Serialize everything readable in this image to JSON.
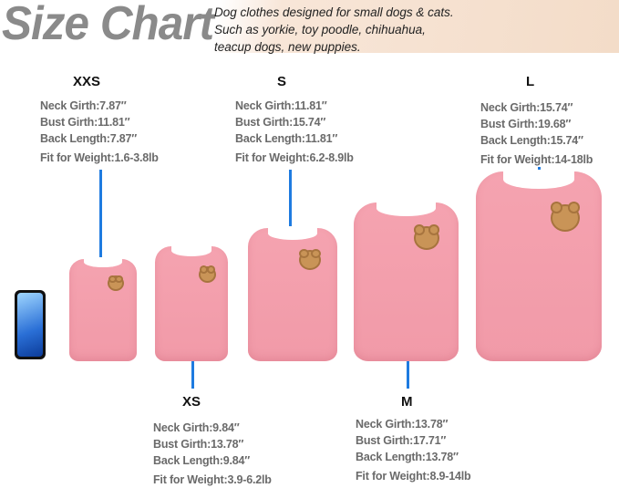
{
  "header": {
    "title": "Size Chart",
    "tagline": [
      "Dog clothes designed for small dogs & cats.",
      "Such as yorkie, toy poodle, chihuahua,",
      "teacup dogs, new puppies."
    ]
  },
  "colors": {
    "shirt": "#f5a3b0",
    "line": "#1e7be0",
    "text": "#6a6a6a"
  },
  "sizes": [
    {
      "size": "XXS",
      "neck": "Neck Girth:7.87″",
      "bust": "Bust Girth:11.81″",
      "back": "Back Length:7.87″",
      "weight": "Fit for Weight:1.6-3.8lb"
    },
    {
      "size": "XS",
      "neck": "Neck Girth:9.84″",
      "bust": "Bust Girth:13.78″",
      "back": "Back Length:9.84″",
      "weight": "Fit for Weight:3.9-6.2lb"
    },
    {
      "size": "S",
      "neck": "Neck Girth:11.81″",
      "bust": "Bust Girth:15.74″",
      "back": "Back Length:11.81″",
      "weight": "Fit for Weight:6.2-8.9lb"
    },
    {
      "size": "M",
      "neck": "Neck Girth:13.78″",
      "bust": "Bust Girth:17.71″",
      "back": "Back Length:13.78″",
      "weight": "Fit for Weight:8.9-14lb"
    },
    {
      "size": "L",
      "neck": "Neck Girth:15.74″",
      "bust": "Bust Girth:19.68″",
      "back": "Back Length:15.74″",
      "weight": "Fit for Weight:14-18lb"
    }
  ]
}
